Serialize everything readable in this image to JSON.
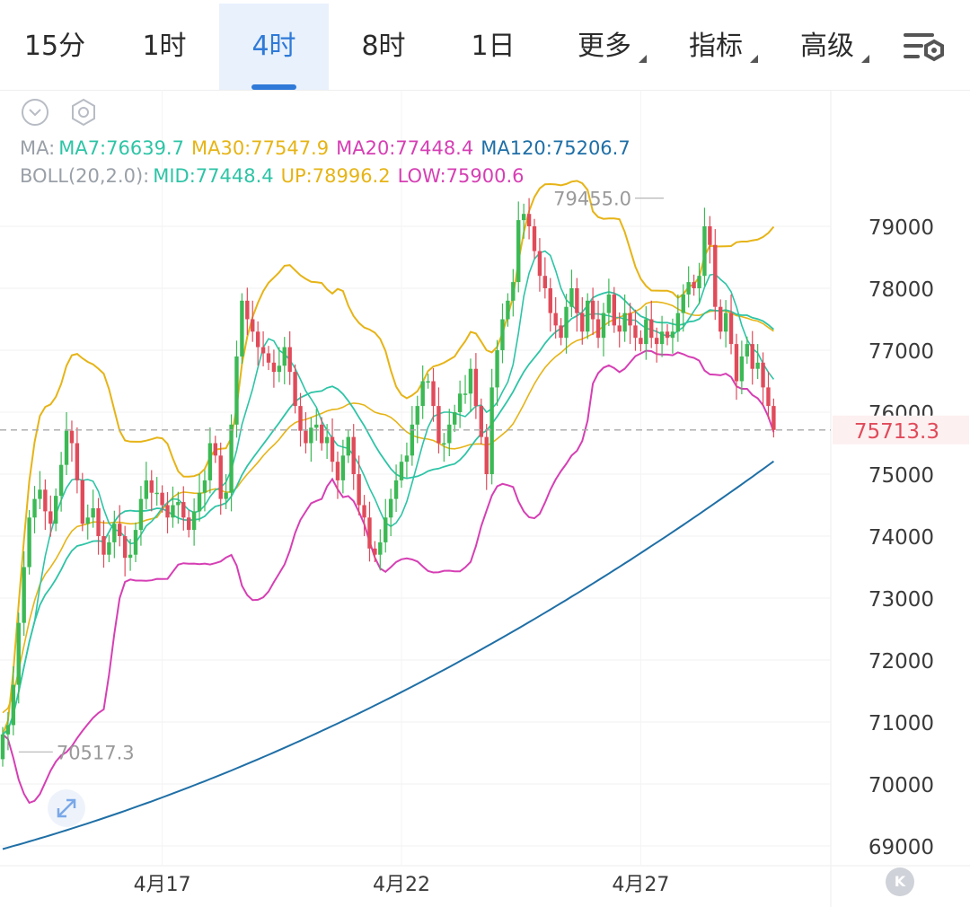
{
  "tabs": [
    {
      "label": "15分",
      "active": false,
      "menu": false
    },
    {
      "label": "1时",
      "active": false,
      "menu": false
    },
    {
      "label": "4时",
      "active": true,
      "menu": false
    },
    {
      "label": "8时",
      "active": false,
      "menu": false
    },
    {
      "label": "1日",
      "active": false,
      "menu": false
    },
    {
      "label": "更多",
      "active": false,
      "menu": true
    },
    {
      "label": "指标",
      "active": false,
      "menu": true
    },
    {
      "label": "高级",
      "active": false,
      "menu": true
    }
  ],
  "legend": {
    "ma": {
      "prefix": "MA:",
      "items": [
        {
          "text": "MA7:76639.7",
          "color": "#2ec4a6"
        },
        {
          "text": "MA30:77547.9",
          "color": "#e6b417"
        },
        {
          "text": "MA20:77448.4",
          "color": "#d63fb4"
        },
        {
          "text": "MA120:75206.7",
          "color": "#1f6fa6"
        }
      ]
    },
    "boll": {
      "prefix": "BOLL(20,2.0):",
      "items": [
        {
          "text": "MID:77448.4",
          "color": "#2ec4a6"
        },
        {
          "text": "UP:78996.2",
          "color": "#e6b417"
        },
        {
          "text": "LOW:75900.6",
          "color": "#d63fb4"
        }
      ]
    }
  },
  "chart_data": {
    "type": "candlestick",
    "y_axis": {
      "ticks": [
        "79000",
        "78000",
        "77000",
        "76000",
        "75000",
        "74000",
        "73000",
        "72000",
        "71000",
        "70000",
        "69000"
      ],
      "ylim": [
        68500,
        80500
      ],
      "position": "right"
    },
    "x_axis": {
      "labels": [
        "4月17",
        "4月22",
        "4月27"
      ],
      "label_candle_index": [
        30,
        75,
        120
      ]
    },
    "last_price": {
      "label": "75713.3",
      "value": 75713.3,
      "color": "#e04b5a"
    },
    "annotations": {
      "high_label": "79455.0",
      "high_value": 79455.0,
      "high_candle": 125,
      "low_label": "70517.3",
      "low_value": 70517.3,
      "low_candle": 2
    },
    "colors": {
      "up": "#3cb955",
      "down": "#e04b5a",
      "mid": "#2ec4a6",
      "upper": "#e6b417",
      "lower": "#d63fb4",
      "ma120": "#1f6fa6"
    },
    "close": [
      70800,
      70950,
      71600,
      72600,
      73500,
      74300,
      74600,
      74750,
      74400,
      74200,
      74650,
      75150,
      75700,
      75500,
      74900,
      74200,
      74300,
      74450,
      74000,
      73700,
      73900,
      74200,
      74000,
      73650,
      73700,
      74100,
      74600,
      74900,
      74700,
      74700,
      74500,
      74300,
      74500,
      74550,
      74300,
      74100,
      74400,
      74700,
      74900,
      75500,
      75300,
      74600,
      74700,
      75800,
      76900,
      77800,
      77500,
      77300,
      77050,
      76950,
      76800,
      76650,
      76750,
      77050,
      76650,
      76100,
      75700,
      75500,
      75750,
      75800,
      75500,
      75600,
      75200,
      74900,
      75300,
      75600,
      75000,
      74500,
      74300,
      73800,
      73700,
      73900,
      74300,
      74600,
      74900,
      75200,
      75300,
      75800,
      76100,
      76500,
      76500,
      76100,
      75500,
      75500,
      75800,
      76000,
      76300,
      76300,
      76700,
      76100,
      75600,
      75000,
      76400,
      77000,
      77500,
      77800,
      78100,
      79100,
      79200,
      79000,
      78600,
      78200,
      78000,
      77600,
      77400,
      77200,
      77700,
      78000,
      77600,
      77300,
      77800,
      77500,
      77200,
      77600,
      77900,
      77400,
      77300,
      77600,
      77400,
      77200,
      77100,
      77500,
      77200,
      77100,
      77300,
      77200,
      77300,
      77600,
      77900,
      78100,
      78000,
      78200,
      79000,
      78700,
      77700,
      77300,
      77600,
      77100,
      76500,
      76900,
      77100,
      76700,
      76800,
      76400,
      76100,
      75713
    ]
  },
  "controls": {
    "collapse_icon": "chevron-down-circle-icon",
    "settings_icon": "hexagon-settings-icon",
    "chart_settings_icon": "sliders-gear-icon",
    "expand_icon": "expand-arrows-icon",
    "scroll_end_label": "K"
  }
}
